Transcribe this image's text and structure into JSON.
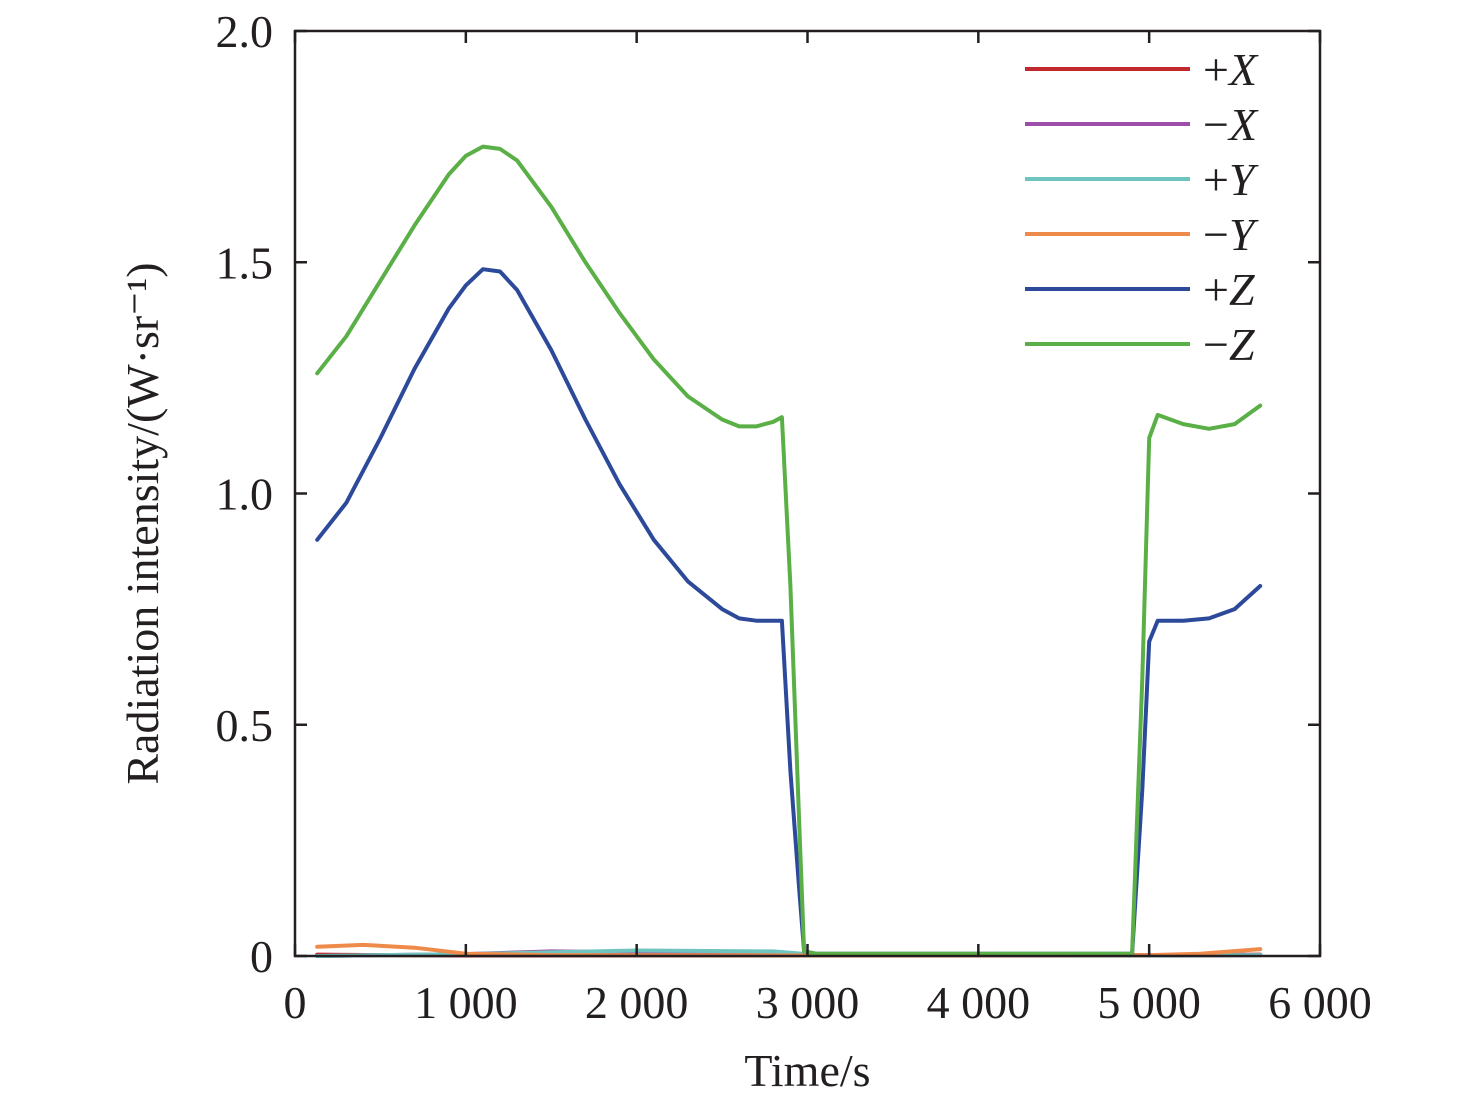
{
  "chart_data": {
    "type": "line",
    "title": "",
    "xlabel": "Time/s",
    "ylabel": "Radiation intensity/(W·sr⁻¹)",
    "xlim": [
      0,
      6000
    ],
    "ylim": [
      0,
      2.0
    ],
    "xticks": [
      0,
      1000,
      2000,
      3000,
      4000,
      5000,
      6000
    ],
    "xtick_labels": [
      "0",
      "1 000",
      "2 000",
      "3 000",
      "4 000",
      "5 000",
      "6 000"
    ],
    "yticks": [
      0,
      0.5,
      1.0,
      1.5,
      2.0
    ],
    "ytick_labels": [
      "0",
      "0.5",
      "1.0",
      "1.5",
      "2.0"
    ],
    "grid": false,
    "legend_position": "top-right",
    "series": [
      {
        "name": "+X",
        "sign": "+",
        "axis": "X",
        "color": "#c0282d",
        "x": [
          130,
          500,
          1000,
          2000,
          3000,
          4000,
          5000,
          5650
        ],
        "y": [
          0.003,
          0.002,
          0.001,
          0.001,
          0.001,
          0.001,
          0.002,
          0.003
        ]
      },
      {
        "name": "−X",
        "sign": "−",
        "axis": "X",
        "color": "#9b4fa8",
        "x": [
          130,
          1000,
          1500,
          2000,
          2500,
          3000,
          4000,
          5000,
          5650
        ],
        "y": [
          0.0,
          0.004,
          0.01,
          0.008,
          0.004,
          0.001,
          0.001,
          0.001,
          0.002
        ]
      },
      {
        "name": "+Y",
        "sign": "+",
        "axis": "Y",
        "color": "#6ec4bf",
        "x": [
          130,
          1000,
          2000,
          2800,
          3000,
          4000,
          5000,
          5650
        ],
        "y": [
          0.0,
          0.004,
          0.012,
          0.01,
          0.004,
          0.002,
          0.001,
          0.002
        ]
      },
      {
        "name": "−Y",
        "sign": "−",
        "axis": "Y",
        "color": "#ee8a4a",
        "x": [
          130,
          400,
          700,
          1000,
          1500,
          3000,
          4000,
          5000,
          5300,
          5650
        ],
        "y": [
          0.02,
          0.024,
          0.018,
          0.005,
          0.002,
          0.001,
          0.001,
          0.002,
          0.005,
          0.015
        ]
      },
      {
        "name": "+Z",
        "sign": "+",
        "axis": "Z",
        "color": "#2d4a9a",
        "x": [
          130,
          300,
          500,
          700,
          900,
          1000,
          1100,
          1200,
          1300,
          1500,
          1700,
          1900,
          2100,
          2300,
          2500,
          2600,
          2700,
          2800,
          2850,
          2900,
          2950,
          2980,
          3050,
          4000,
          4900,
          4960,
          5000,
          5050,
          5200,
          5350,
          5500,
          5650
        ],
        "y": [
          0.9,
          0.98,
          1.12,
          1.27,
          1.4,
          1.45,
          1.485,
          1.48,
          1.44,
          1.31,
          1.16,
          1.02,
          0.9,
          0.81,
          0.75,
          0.73,
          0.725,
          0.725,
          0.725,
          0.4,
          0.15,
          0.01,
          0.005,
          0.005,
          0.005,
          0.36,
          0.68,
          0.725,
          0.725,
          0.73,
          0.75,
          0.8
        ]
      },
      {
        "name": "−Z",
        "sign": "−",
        "axis": "Z",
        "color": "#5aaf46",
        "x": [
          130,
          300,
          500,
          700,
          900,
          1000,
          1100,
          1200,
          1300,
          1500,
          1700,
          1900,
          2100,
          2300,
          2500,
          2600,
          2700,
          2800,
          2850,
          2900,
          2950,
          2980,
          3050,
          4000,
          4900,
          4960,
          5000,
          5050,
          5200,
          5350,
          5500,
          5650
        ],
        "y": [
          1.26,
          1.34,
          1.46,
          1.58,
          1.69,
          1.73,
          1.75,
          1.745,
          1.72,
          1.62,
          1.5,
          1.39,
          1.29,
          1.21,
          1.16,
          1.145,
          1.145,
          1.155,
          1.165,
          0.8,
          0.3,
          0.01,
          0.005,
          0.005,
          0.005,
          0.6,
          1.12,
          1.17,
          1.15,
          1.14,
          1.15,
          1.19
        ]
      }
    ]
  }
}
